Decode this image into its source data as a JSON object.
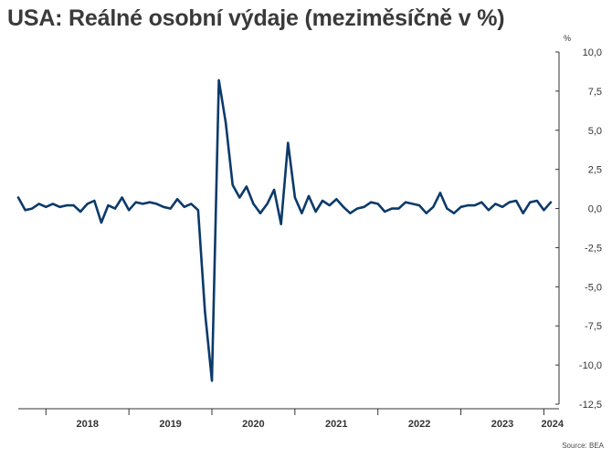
{
  "title": "USA: Reálné osobní výdaje (meziměsíčně v %)",
  "source": "Source: BEA",
  "chart_data": {
    "type": "line",
    "title": "USA: Reálné osobní výdaje (meziměsíčně v %)",
    "ylabel": "%",
    "ylim": [
      -12.5,
      10.0
    ],
    "yticks": [
      10.0,
      7.5,
      5.0,
      2.5,
      0.0,
      -2.5,
      -5.0,
      -7.5,
      -10.0,
      -12.5
    ],
    "ytick_labels": [
      "10,0",
      "7,5",
      "5,0",
      "2,5",
      "0,0",
      "-2,5",
      "-5,0",
      "-7,5",
      "-10,0",
      "-12,5"
    ],
    "xrange": [
      "2017-09",
      "2024-02"
    ],
    "year_labels": [
      "2018",
      "2019",
      "2020",
      "2021",
      "2022",
      "2023",
      "2024"
    ],
    "grid": false,
    "legend": "none",
    "line_color": "#0b3a6a",
    "series": [
      {
        "x": [
          "2017-09",
          "2017-10",
          "2017-11",
          "2017-12",
          "2018-01",
          "2018-02",
          "2018-03",
          "2018-04",
          "2018-05",
          "2018-06",
          "2018-07",
          "2018-08",
          "2018-09",
          "2018-10",
          "2018-11",
          "2018-12",
          "2019-01",
          "2019-02",
          "2019-03",
          "2019-04",
          "2019-05",
          "2019-06",
          "2019-07",
          "2019-08",
          "2019-09",
          "2019-10",
          "2019-11",
          "2019-12",
          "2020-01",
          "2020-02",
          "2020-03",
          "2020-04",
          "2020-05",
          "2020-06",
          "2020-07",
          "2020-08",
          "2020-09",
          "2020-10",
          "2020-11",
          "2020-12",
          "2021-01",
          "2021-02",
          "2021-03",
          "2021-04",
          "2021-05",
          "2021-06",
          "2021-07",
          "2021-08",
          "2021-09",
          "2021-10",
          "2021-11",
          "2021-12",
          "2022-01",
          "2022-02",
          "2022-03",
          "2022-04",
          "2022-05",
          "2022-06",
          "2022-07",
          "2022-08",
          "2022-09",
          "2022-10",
          "2022-11",
          "2022-12",
          "2023-01",
          "2023-02",
          "2023-03",
          "2023-04",
          "2023-05",
          "2023-06",
          "2023-07",
          "2023-08",
          "2023-09",
          "2023-10",
          "2023-11",
          "2023-12",
          "2024-01",
          "2024-02"
        ],
        "values": [
          0.7,
          -0.1,
          0.0,
          0.3,
          0.1,
          0.3,
          0.1,
          0.2,
          0.2,
          -0.2,
          0.3,
          0.5,
          -0.9,
          0.2,
          0.0,
          0.7,
          -0.1,
          0.4,
          0.3,
          0.4,
          0.3,
          0.1,
          0.0,
          0.6,
          0.1,
          0.3,
          -0.1,
          -6.6,
          -11.0,
          8.2,
          5.5,
          1.5,
          0.7,
          1.4,
          0.3,
          -0.3,
          0.3,
          1.2,
          -1.0,
          4.2,
          0.7,
          -0.3,
          0.8,
          -0.2,
          0.5,
          0.2,
          0.6,
          0.1,
          -0.3,
          0.0,
          0.1,
          0.4,
          0.3,
          -0.2,
          0.0,
          0.0,
          0.4,
          0.3,
          0.2,
          -0.3,
          0.1,
          1.0,
          0.0,
          -0.3,
          0.1,
          0.2,
          0.2,
          0.4,
          -0.1,
          0.3,
          0.1,
          0.4,
          0.5,
          -0.3,
          0.4,
          0.5,
          -0.1,
          0.4
        ]
      }
    ]
  }
}
